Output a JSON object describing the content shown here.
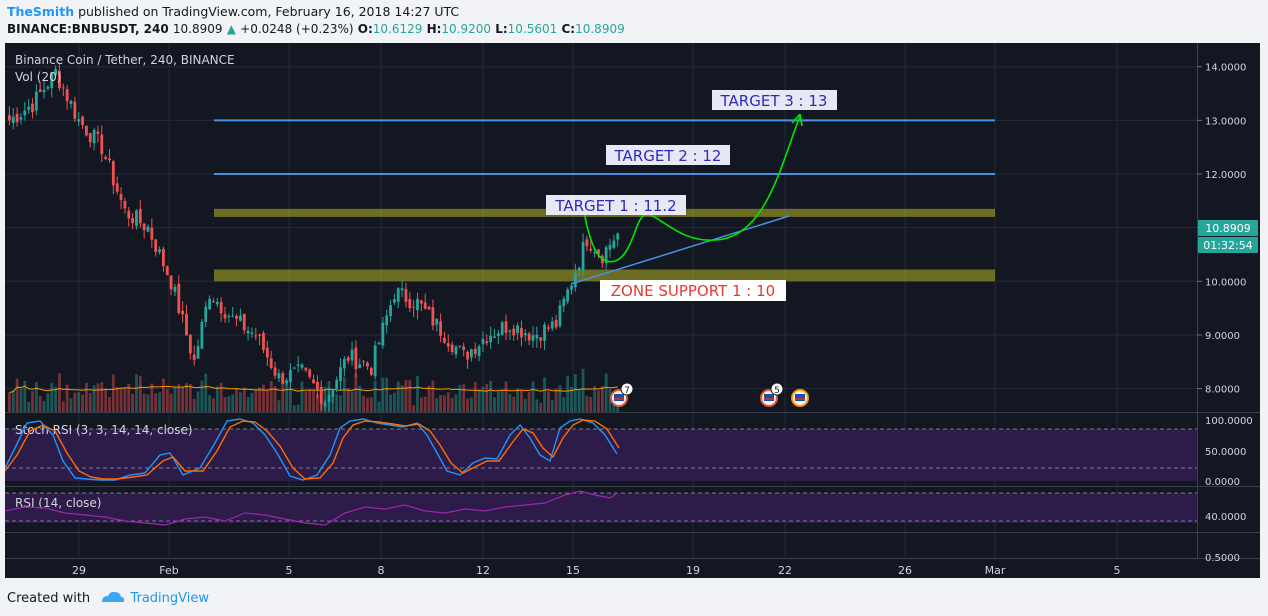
{
  "header": {
    "user": "TheSmith",
    "published": "published on TradingView.com, February 16, 2018 14:27 UTC",
    "symbol": "BINANCE:BNBUSDT, 240",
    "last": "10.8909",
    "change_arrow": "▲",
    "change": "+0.0248 (+0.23%)",
    "o_label": "O:",
    "o": "10.6129",
    "h_label": "H:",
    "h": "10.9200",
    "l_label": "L:",
    "l": "10.5601",
    "c_label": "C:",
    "c": "10.8909"
  },
  "chart_title": "Binance Coin / Tether, 240, BINANCE",
  "volume_label": "Vol (20)",
  "stoch_label": "Stoch RSI (3, 3, 14, 14, close)",
  "rsi_label": "RSI (14, close)",
  "price_badge": "10.8909",
  "countdown_badge": "01:32:54",
  "footer": {
    "created": "Created with",
    "brand": "TradingView"
  },
  "events": {
    "count_a": "7",
    "count_b": "5"
  },
  "colors": {
    "up": "#26a69a",
    "down": "#ef5350",
    "accent": "#2196f3",
    "zone": "#b5b525",
    "target_line": "#4a90e2",
    "arrow": "#00e600"
  },
  "chart_data": {
    "type": "candlestick",
    "title": "Binance Coin / Tether, 240, BINANCE",
    "price_axis": [
      "14.0000",
      "13.0000",
      "12.0000",
      "11.0000",
      "10.0000",
      "9.0000",
      "8.0000"
    ],
    "ylim": [
      7.5,
      14.3
    ],
    "time_axis": [
      "29",
      "Feb",
      "5",
      "8",
      "12",
      "15",
      "19",
      "22",
      "26",
      "Mar",
      "5"
    ],
    "stoch_axis": [
      "100.0000",
      "50.0000",
      "0.0000"
    ],
    "rsi_axis": [
      "40.0000",
      "0.5000"
    ],
    "ohlc_last": {
      "o": 10.6129,
      "h": 10.92,
      "l": 10.5601,
      "c": 10.8909
    },
    "anchors": [
      {
        "t": 0,
        "p": 13.0
      },
      {
        "t": 6,
        "p": 13.3
      },
      {
        "t": 12,
        "p": 13.9
      },
      {
        "t": 18,
        "p": 13.0
      },
      {
        "t": 24,
        "p": 12.5
      },
      {
        "t": 30,
        "p": 11.3
      },
      {
        "t": 36,
        "p": 11.0
      },
      {
        "t": 42,
        "p": 10.0
      },
      {
        "t": 48,
        "p": 8.5
      },
      {
        "t": 52,
        "p": 9.8
      },
      {
        "t": 58,
        "p": 9.3
      },
      {
        "t": 64,
        "p": 9.0
      },
      {
        "t": 70,
        "p": 8.2
      },
      {
        "t": 76,
        "p": 8.3
      },
      {
        "t": 82,
        "p": 7.8
      },
      {
        "t": 88,
        "p": 8.6
      },
      {
        "t": 94,
        "p": 8.4
      },
      {
        "t": 100,
        "p": 9.8
      },
      {
        "t": 106,
        "p": 9.6
      },
      {
        "t": 112,
        "p": 9.1
      },
      {
        "t": 118,
        "p": 8.6
      },
      {
        "t": 124,
        "p": 9.0
      },
      {
        "t": 130,
        "p": 9.2
      },
      {
        "t": 136,
        "p": 9.0
      },
      {
        "t": 142,
        "p": 9.2
      },
      {
        "t": 146,
        "p": 10.0
      },
      {
        "t": 150,
        "p": 10.8
      },
      {
        "t": 154,
        "p": 10.5
      },
      {
        "t": 158,
        "p": 10.9
      }
    ],
    "levels": [
      {
        "label": "TARGET 3 : 13",
        "price": 13.0
      },
      {
        "label": "TARGET 2 : 12",
        "price": 12.0
      }
    ],
    "zones": [
      {
        "label": "TARGET 1 : 11.2",
        "low": 11.2,
        "high": 11.35
      },
      {
        "label": "ZONE SUPPORT 1 : 10",
        "low": 10.0,
        "high": 10.22
      }
    ]
  }
}
